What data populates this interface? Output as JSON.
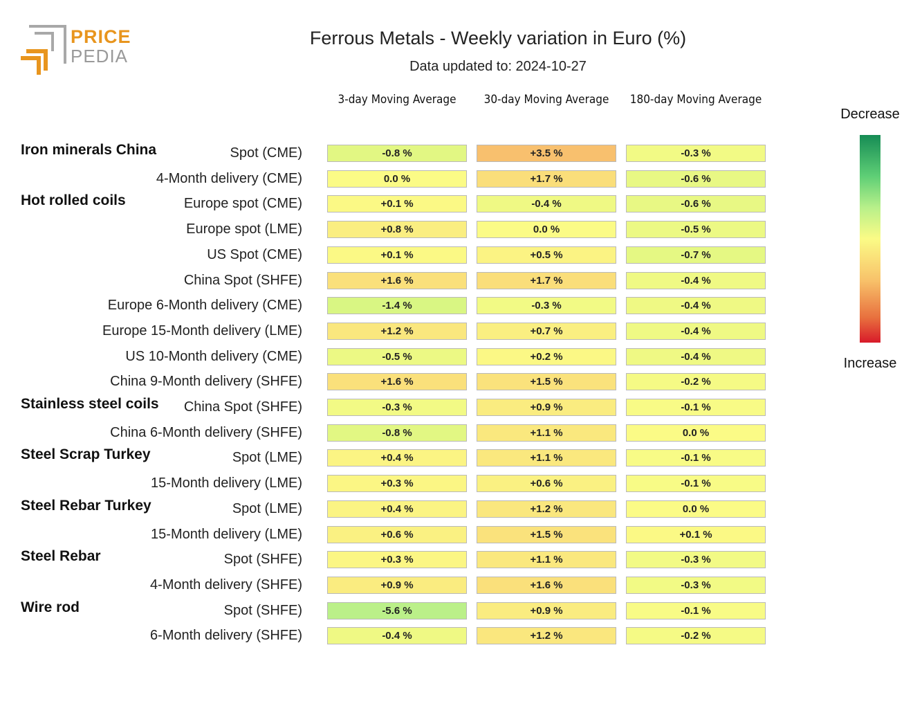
{
  "logo": {
    "line1": "PRICE",
    "line2": "PEDIA"
  },
  "chart_data": {
    "type": "table",
    "title": "Ferrous Metals - Weekly variation in Euro (%)",
    "subtitle": "Data updated to: 2024-10-27",
    "columns": [
      "3-day Moving Average",
      "30-day Moving Average",
      "180-day Moving Average"
    ],
    "legend": {
      "top": "Decrease",
      "bottom": "Increase"
    },
    "rows": [
      {
        "group": "Iron minerals China",
        "label": "Spot (CME)",
        "values": [
          -0.8,
          3.5,
          -0.3
        ],
        "texts": [
          "-0.8 %",
          "+3.5 %",
          "-0.3 %"
        ]
      },
      {
        "group": "",
        "label": "4-Month delivery (CME)",
        "values": [
          0.0,
          1.7,
          -0.6
        ],
        "texts": [
          "0.0 %",
          "+1.7 %",
          "-0.6 %"
        ]
      },
      {
        "group": "Hot rolled coils",
        "label": "Europe spot (CME)",
        "values": [
          0.1,
          -0.4,
          -0.6
        ],
        "texts": [
          "+0.1 %",
          "-0.4 %",
          "-0.6 %"
        ]
      },
      {
        "group": "",
        "label": "Europe spot (LME)",
        "values": [
          0.8,
          0.0,
          -0.5
        ],
        "texts": [
          "+0.8 %",
          "0.0 %",
          "-0.5 %"
        ]
      },
      {
        "group": "",
        "label": "US Spot (CME)",
        "values": [
          0.1,
          0.5,
          -0.7
        ],
        "texts": [
          "+0.1 %",
          "+0.5 %",
          "-0.7 %"
        ]
      },
      {
        "group": "",
        "label": "China Spot (SHFE)",
        "values": [
          1.6,
          1.7,
          -0.4
        ],
        "texts": [
          "+1.6 %",
          "+1.7 %",
          "-0.4 %"
        ]
      },
      {
        "group": "",
        "label": "Europe 6-Month delivery (CME)",
        "values": [
          -1.4,
          -0.3,
          -0.4
        ],
        "texts": [
          "-1.4 %",
          "-0.3 %",
          "-0.4 %"
        ]
      },
      {
        "group": "",
        "label": "Europe 15-Month delivery (LME)",
        "values": [
          1.2,
          0.7,
          -0.4
        ],
        "texts": [
          "+1.2 %",
          "+0.7 %",
          "-0.4 %"
        ]
      },
      {
        "group": "",
        "label": "US 10-Month delivery (CME)",
        "values": [
          -0.5,
          0.2,
          -0.4
        ],
        "texts": [
          "-0.5 %",
          "+0.2 %",
          "-0.4 %"
        ]
      },
      {
        "group": "",
        "label": "China 9-Month delivery (SHFE)",
        "values": [
          1.6,
          1.5,
          -0.2
        ],
        "texts": [
          "+1.6 %",
          "+1.5 %",
          "-0.2 %"
        ]
      },
      {
        "group": "Stainless steel coils",
        "label": "China Spot (SHFE)",
        "values": [
          -0.3,
          0.9,
          -0.1
        ],
        "texts": [
          "-0.3 %",
          "+0.9 %",
          "-0.1 %"
        ]
      },
      {
        "group": "",
        "label": "China 6-Month delivery (SHFE)",
        "values": [
          -0.8,
          1.1,
          0.0
        ],
        "texts": [
          "-0.8 %",
          "+1.1 %",
          "0.0 %"
        ]
      },
      {
        "group": "Steel Scrap Turkey",
        "label": "Spot (LME)",
        "values": [
          0.4,
          1.1,
          -0.1
        ],
        "texts": [
          "+0.4 %",
          "+1.1 %",
          "-0.1 %"
        ]
      },
      {
        "group": "",
        "label": "15-Month delivery (LME)",
        "values": [
          0.3,
          0.6,
          -0.1
        ],
        "texts": [
          "+0.3 %",
          "+0.6 %",
          "-0.1 %"
        ]
      },
      {
        "group": "Steel Rebar Turkey",
        "label": "Spot (LME)",
        "values": [
          0.4,
          1.2,
          0.0
        ],
        "texts": [
          "+0.4 %",
          "+1.2 %",
          "0.0 %"
        ]
      },
      {
        "group": "",
        "label": "15-Month delivery (LME)",
        "values": [
          0.6,
          1.5,
          0.1
        ],
        "texts": [
          "+0.6 %",
          "+1.5 %",
          "+0.1 %"
        ]
      },
      {
        "group": "Steel Rebar",
        "label": "Spot (SHFE)",
        "values": [
          0.3,
          1.1,
          -0.3
        ],
        "texts": [
          "+0.3 %",
          "+1.1 %",
          "-0.3 %"
        ]
      },
      {
        "group": "",
        "label": "4-Month delivery (SHFE)",
        "values": [
          0.9,
          1.6,
          -0.3
        ],
        "texts": [
          "+0.9 %",
          "+1.6 %",
          "-0.3 %"
        ]
      },
      {
        "group": "Wire rod",
        "label": "Spot (SHFE)",
        "values": [
          -5.6,
          0.9,
          -0.1
        ],
        "texts": [
          "-5.6 %",
          "+0.9 %",
          "-0.1 %"
        ]
      },
      {
        "group": "",
        "label": "6-Month delivery (SHFE)",
        "values": [
          -0.4,
          1.2,
          -0.2
        ],
        "texts": [
          "-0.4 %",
          "+1.2 %",
          "-0.2 %"
        ]
      }
    ]
  }
}
